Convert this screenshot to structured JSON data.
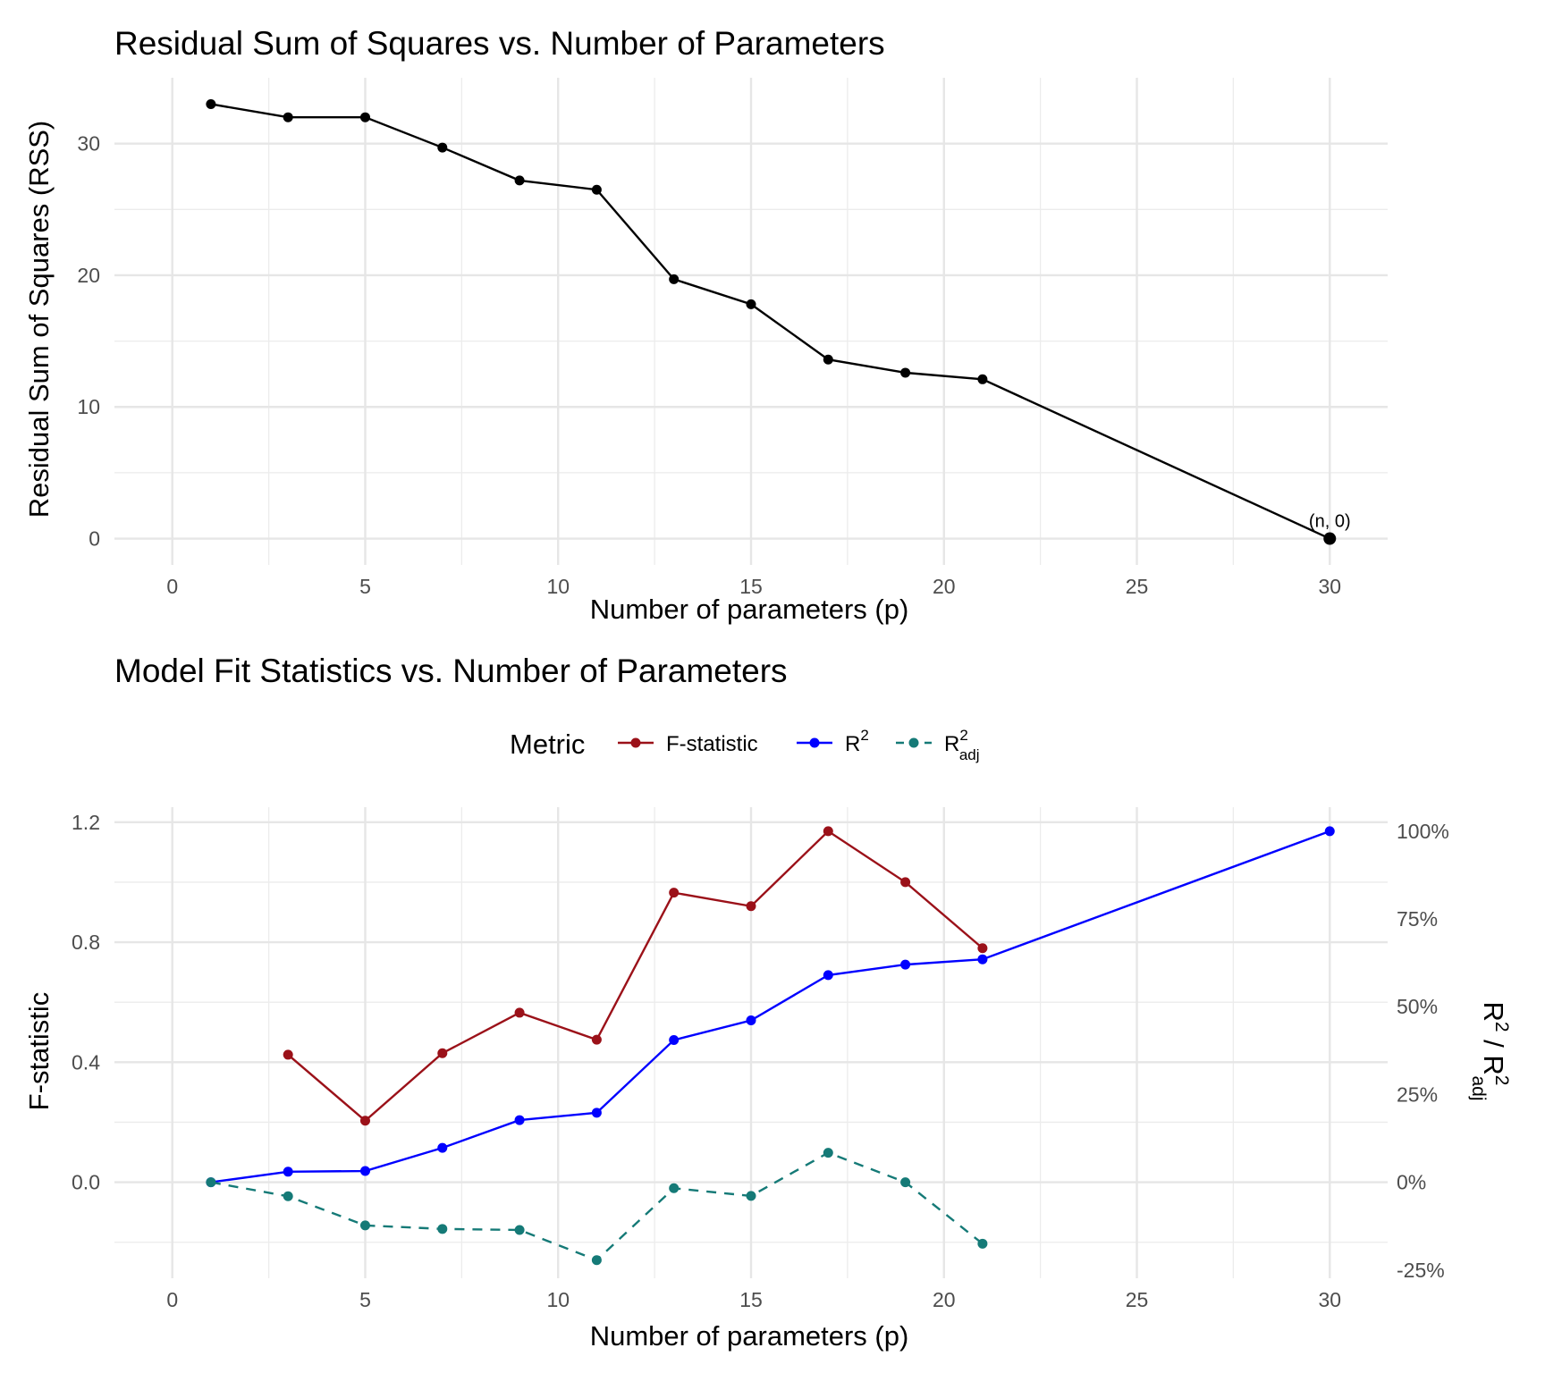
{
  "chart_data": [
    {
      "type": "line",
      "title": "Residual Sum of Squares vs. Number of Parameters",
      "xlabel": "Number of parameters (p)",
      "ylabel": "Residual Sum of Squares (RSS)",
      "xlim": [
        -1.5,
        31.5
      ],
      "ylim": [
        -2,
        35
      ],
      "x_ticks": [
        0,
        5,
        10,
        15,
        20,
        25,
        30
      ],
      "y_ticks": [
        0,
        10,
        20,
        30
      ],
      "grid": true,
      "series": [
        {
          "color": "#000000",
          "x": [
            1,
            3,
            5,
            7,
            9,
            11,
            13,
            15,
            17,
            19,
            21,
            30
          ],
          "y": [
            33.0,
            32.0,
            32.0,
            29.7,
            27.2,
            26.5,
            19.7,
            17.8,
            13.6,
            12.6,
            12.1,
            0
          ]
        }
      ],
      "annotations": [
        {
          "text": "(n, 0)",
          "x": 30,
          "y": 0
        }
      ]
    },
    {
      "type": "line",
      "title": "Model Fit Statistics vs. Number of Parameters",
      "xlabel": "Number of parameters (p)",
      "ylabel": "F-statistic",
      "ylabel_right": {
        "base": "R",
        "sup": "2",
        "sep": " / ",
        "base2": "R",
        "sup2": "2",
        "sub2": "adj"
      },
      "xlim": [
        -1.5,
        31.5
      ],
      "ylim": [
        -0.32,
        1.25
      ],
      "x_ticks": [
        0,
        5,
        10,
        15,
        20,
        25,
        30
      ],
      "y_ticks": [
        0.0,
        0.4,
        0.8,
        1.2
      ],
      "y_tick_labels": [
        "0.0",
        "0.4",
        "0.8",
        "1.2"
      ],
      "y_right_ticks": [
        -0.25,
        0,
        0.25,
        0.5,
        0.75,
        1.0
      ],
      "y_right_tick_labels": [
        "-25%",
        "0%",
        "25%",
        "50%",
        "75%",
        "100%"
      ],
      "secondary_scale_note": "right axis value = left axis value / 1.17",
      "grid": true,
      "legend": {
        "title": "Metric",
        "position": "top",
        "entries": [
          {
            "label": "F-statistic",
            "color": "#9b1119",
            "dash": false
          },
          {
            "label": "R",
            "sup": "2",
            "color": "#0000ff",
            "dash": false
          },
          {
            "label": "R",
            "sup": "2",
            "sub": "adj",
            "color": "#157a77",
            "dash": true
          }
        ]
      },
      "series": [
        {
          "name": "F-statistic",
          "axis": "left",
          "color": "#9b1119",
          "dash": false,
          "x": [
            3,
            5,
            7,
            9,
            11,
            13,
            15,
            17,
            19,
            21
          ],
          "y": [
            0.425,
            0.205,
            0.43,
            0.565,
            0.475,
            0.965,
            0.92,
            1.17,
            1.0,
            0.78
          ]
        },
        {
          "name": "R2",
          "axis": "right",
          "color": "#0000ff",
          "dash": false,
          "x": [
            1,
            3,
            5,
            7,
            9,
            11,
            13,
            15,
            17,
            19,
            21,
            30
          ],
          "y": [
            0.0,
            0.03,
            0.032,
            0.098,
            0.177,
            0.198,
            0.405,
            0.461,
            0.59,
            0.62,
            0.635,
            1.0
          ]
        },
        {
          "name": "R2_adj",
          "axis": "right",
          "color": "#157a77",
          "dash": true,
          "x": [
            1,
            3,
            5,
            7,
            9,
            11,
            13,
            15,
            17,
            19,
            21
          ],
          "y": [
            0.0,
            -0.04,
            -0.123,
            -0.133,
            -0.136,
            -0.222,
            -0.017,
            -0.039,
            0.084,
            0.0,
            -0.175
          ]
        }
      ]
    }
  ]
}
